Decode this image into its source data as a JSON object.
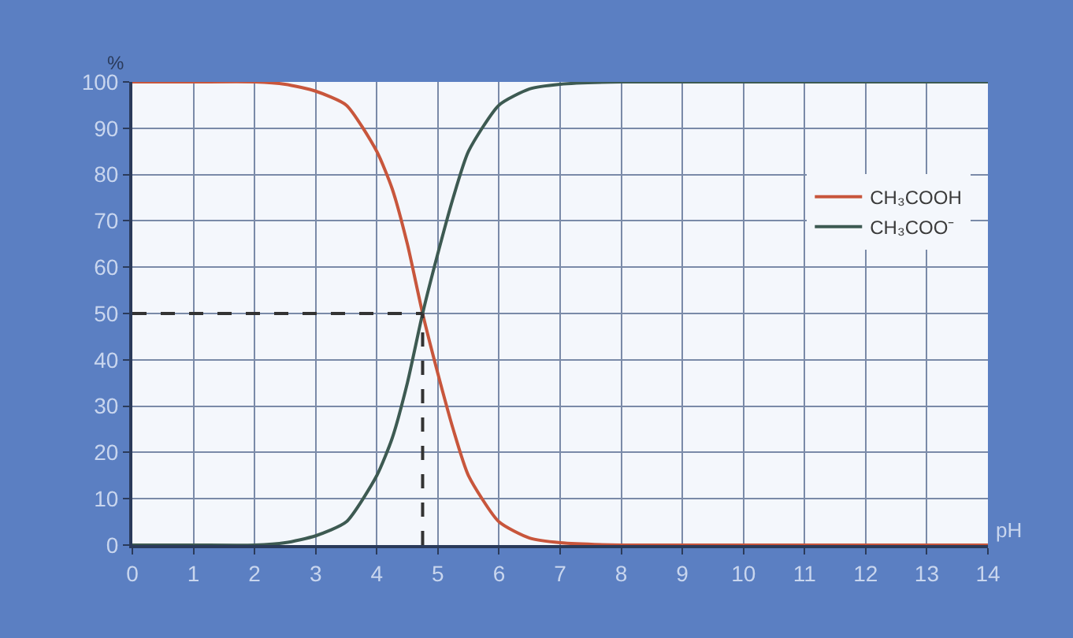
{
  "chart_data": {
    "type": "line",
    "xlabel": "pH",
    "ylabel": "%",
    "x": [
      0,
      1,
      2,
      2.5,
      3,
      3.5,
      4,
      4.25,
      4.5,
      4.75,
      5,
      5.25,
      5.5,
      6,
      6.5,
      7,
      8,
      14
    ],
    "series": [
      {
        "name": "CH₃COOH",
        "color": "#c8563c",
        "values": [
          100,
          100,
          100,
          99.5,
          98,
          95,
          85,
          77,
          65,
          50,
          37,
          25,
          15,
          5,
          1.5,
          0.5,
          0,
          0
        ]
      },
      {
        "name": "CH₃COO⁻",
        "color": "#3d5a52",
        "values": [
          0,
          0,
          0,
          0.5,
          2,
          5,
          15,
          23,
          35,
          50,
          63,
          75,
          85,
          95,
          98.5,
          99.5,
          100,
          100
        ]
      }
    ],
    "xlim": [
      0,
      14
    ],
    "xticks": [
      0,
      1,
      2,
      3,
      4,
      5,
      6,
      7,
      8,
      9,
      10,
      11,
      12,
      13,
      14
    ],
    "ylim": [
      0,
      100
    ],
    "yticks": [
      0,
      10,
      20,
      30,
      40,
      50,
      60,
      70,
      80,
      90,
      100
    ],
    "ref_lines": [
      {
        "axis": "y",
        "value": 50,
        "line_style": "dashed",
        "color": "#333333"
      },
      {
        "axis": "x",
        "value": 4.75,
        "line_style": "dashed",
        "color": "#333333"
      }
    ],
    "grid": true,
    "legend": "right",
    "marker": "none",
    "line_style": "solid"
  }
}
